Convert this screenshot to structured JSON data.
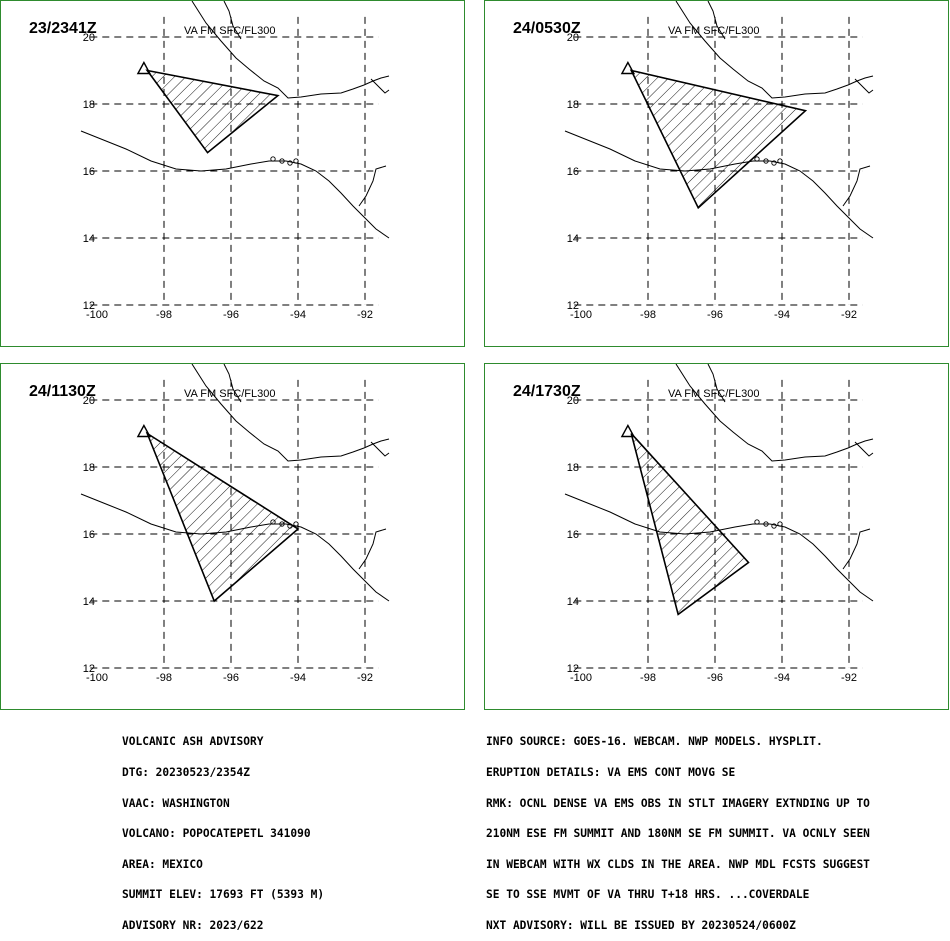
{
  "panels": [
    {
      "time": "23/2341Z",
      "label": "VA FM SFC/FL300",
      "polygon": [
        [
          -98.5,
          19.0
        ],
        [
          -94.6,
          18.25
        ],
        [
          -96.7,
          16.55
        ]
      ]
    },
    {
      "time": "24/0530Z",
      "label": "VA FM SFC/FL300",
      "polygon": [
        [
          -98.5,
          19.0
        ],
        [
          -93.3,
          17.8
        ],
        [
          -96.5,
          14.9
        ]
      ]
    },
    {
      "time": "24/1130Z",
      "label": "VA FM SFC/FL300",
      "polygon": [
        [
          -98.5,
          19.0
        ],
        [
          -94.0,
          16.15
        ],
        [
          -96.5,
          14.0
        ]
      ]
    },
    {
      "time": "24/1730Z",
      "label": "VA FM SFC/FL300",
      "polygon": [
        [
          -98.5,
          19.0
        ],
        [
          -95.0,
          15.15
        ],
        [
          -97.1,
          13.6
        ]
      ]
    }
  ],
  "axes": {
    "x_ticks": [
      -100,
      -98,
      -96,
      -94,
      -92
    ],
    "x_tick_labels": [
      "-100",
      "-98",
      "-96",
      "-94",
      "-92"
    ],
    "y_ticks": [
      20,
      18,
      16,
      14,
      12
    ],
    "y_tick_labels": [
      "20",
      "18",
      "16",
      "14",
      "12"
    ],
    "xlim": [
      -100,
      -92
    ],
    "ylim": [
      12,
      20
    ]
  },
  "volcano_marker": {
    "lon": -98.6,
    "lat": 19.0,
    "icon": "triangle-volcano-icon"
  },
  "colors": {
    "border": "#2e8b2e",
    "lines": "#000000"
  },
  "advisory_left": [
    "VOLCANIC ASH ADVISORY",
    "DTG: 20230523/2354Z",
    "VAAC: WASHINGTON",
    "VOLCANO: POPOCATEPETL 341090",
    "AREA: MEXICO",
    "SUMMIT ELEV: 17693 FT (5393 M)",
    "ADVISORY NR: 2023/622"
  ],
  "advisory_right": [
    "INFO SOURCE: GOES-16. WEBCAM. NWP MODELS. HYSPLIT.",
    "ERUPTION DETAILS: VA EMS CONT MOVG SE",
    "RMK: OCNL DENSE VA EMS OBS IN STLT IMAGERY EXTNDING UP TO",
    "210NM ESE FM SUMMIT AND 180NM SE FM SUMMIT. VA OCNLY SEEN",
    "IN WEBCAM WITH WX CLDS IN THE AREA. NWP MDL FCSTS SUGGEST",
    "SE TO SSE MVMT OF VA THRU T+18 HRS. ...COVERDALE",
    "NXT ADVISORY: WILL BE ISSUED BY 20230524/0600Z"
  ]
}
